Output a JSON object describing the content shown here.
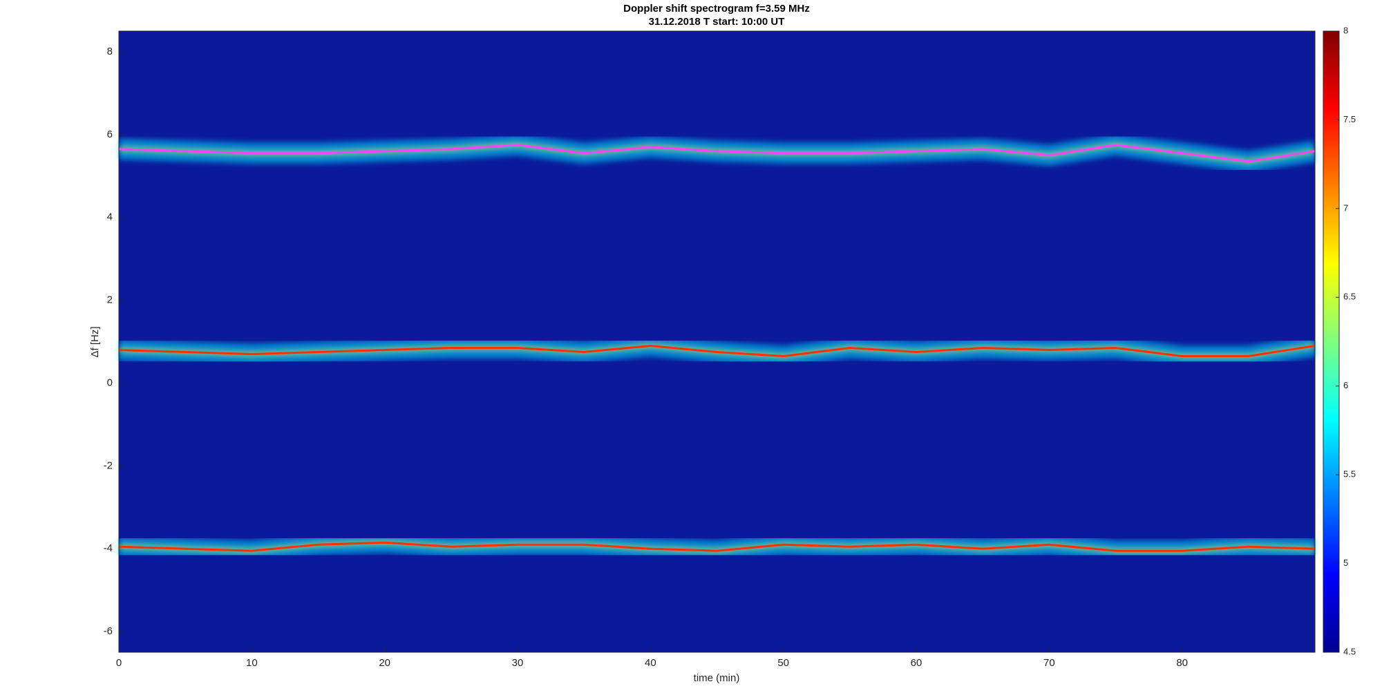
{
  "chart_data": {
    "type": "spectrogram",
    "title": "Doppler shift spectrogram f=3.59 MHz",
    "subtitle": "31.12.2018   T start: 10:00 UT",
    "xlabel": "time (min)",
    "ylabel": "Δf [Hz]",
    "x": [
      0,
      5,
      10,
      15,
      20,
      25,
      30,
      35,
      40,
      45,
      50,
      55,
      60,
      65,
      70,
      75,
      80,
      85,
      90
    ],
    "series": [
      {
        "color": "#ff40ff",
        "values": [
          5.65,
          5.6,
          5.55,
          5.55,
          5.6,
          5.65,
          5.75,
          5.55,
          5.7,
          5.6,
          5.55,
          5.55,
          5.6,
          5.65,
          5.5,
          5.75,
          5.55,
          5.35,
          5.6
        ]
      },
      {
        "color": "#ff3000",
        "values": [
          0.8,
          0.75,
          0.7,
          0.75,
          0.8,
          0.85,
          0.85,
          0.75,
          0.9,
          0.75,
          0.65,
          0.85,
          0.75,
          0.85,
          0.8,
          0.85,
          0.65,
          0.65,
          0.9
        ]
      },
      {
        "color": "#ff3000",
        "values": [
          -3.95,
          -4.0,
          -4.05,
          -3.9,
          -3.85,
          -3.95,
          -3.9,
          -3.9,
          -4.0,
          -4.05,
          -3.9,
          -3.95,
          -3.9,
          -4.0,
          -3.9,
          -4.05,
          -4.05,
          -3.95,
          -4.0
        ]
      }
    ],
    "xlim": [
      0,
      90
    ],
    "xticks": [
      0,
      10,
      20,
      30,
      40,
      50,
      60,
      70,
      80
    ],
    "ylim": [
      -6.5,
      8.5
    ],
    "yticks": [
      -6,
      -4,
      -2,
      0,
      2,
      4,
      6,
      8
    ],
    "clim": [
      4.5,
      8
    ],
    "cticks": [
      4.5,
      5,
      5.5,
      6,
      6.5,
      7,
      7.5,
      8
    ],
    "background_color": "#0a1a9a"
  }
}
